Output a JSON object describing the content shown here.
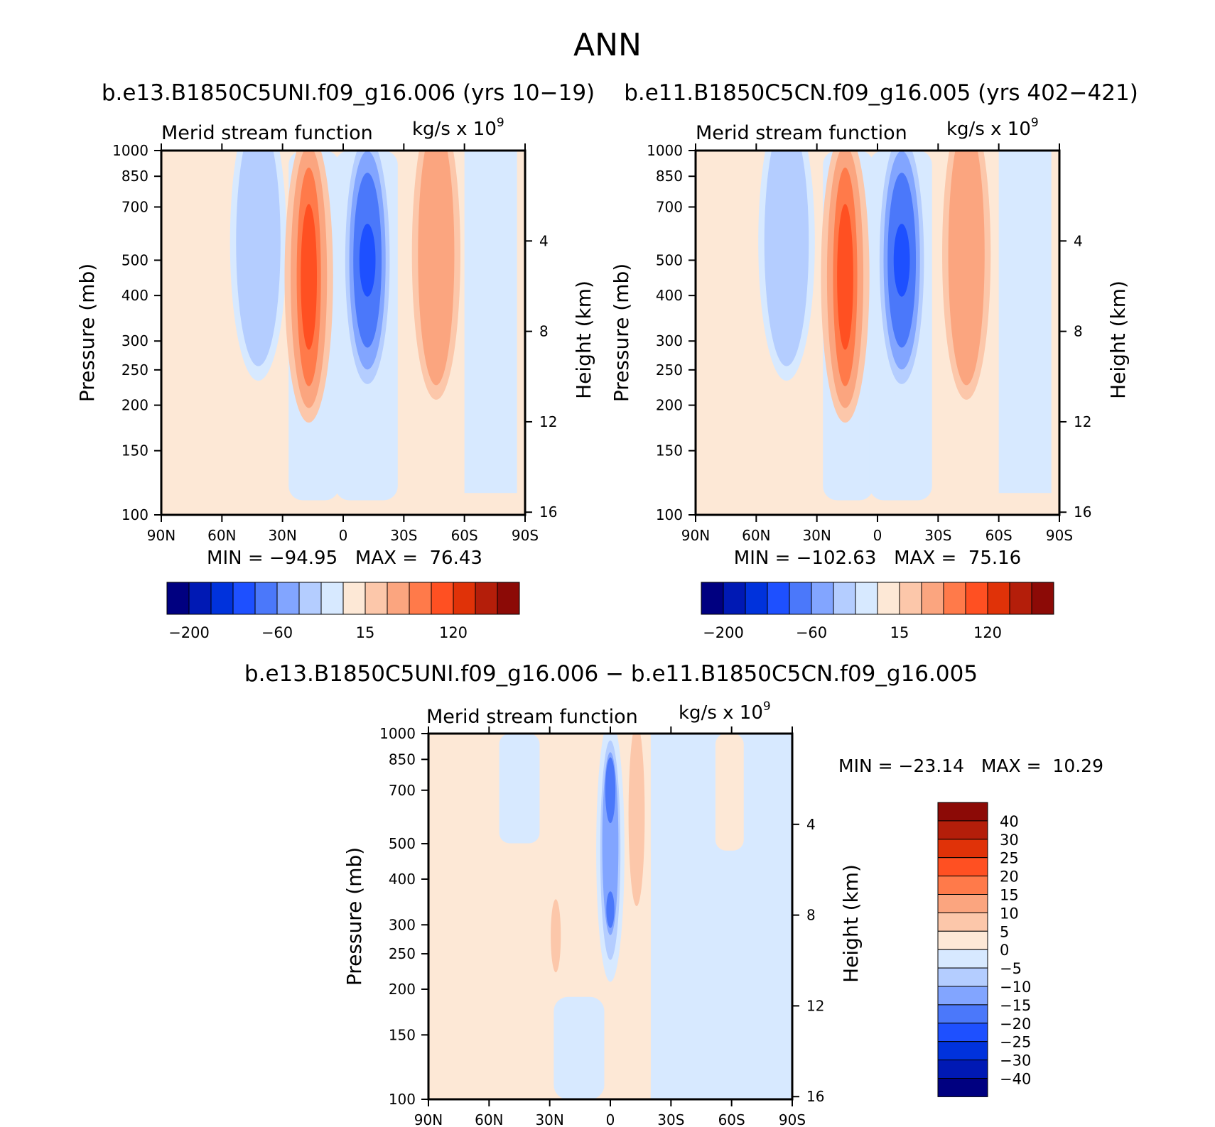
{
  "page_title": "ANN",
  "colors": {
    "blue_scale": [
      "#000080",
      "#0019b4",
      "#0032dc",
      "#1e50ff",
      "#4b78fa",
      "#82a5ff",
      "#b4cdff",
      "#d7e9ff"
    ],
    "red_scale": [
      "#fde8d6",
      "#fcc7aa",
      "#fba57f",
      "#ff7a4a",
      "#ff5022",
      "#e03208",
      "#b41e0a",
      "#8c0a06"
    ]
  },
  "chart_data": [
    {
      "id": "panel1",
      "type": "heatmap",
      "title": "b.e13.B1850C5UNI.f09_g16.006 (yrs 10−19)",
      "subtitle": "Merid stream function",
      "units": "kg/s x 10",
      "units_exp": "9",
      "ylabel": "Pressure (mb)",
      "ylabel2": "Height (km)",
      "x_ticks": [
        "90N",
        "60N",
        "30N",
        "0",
        "30S",
        "60S",
        "90S"
      ],
      "y_ticks": [
        100,
        150,
        200,
        250,
        300,
        400,
        500,
        700,
        850,
        1000
      ],
      "height_ticks": [
        16,
        12,
        8,
        4
      ],
      "stats": "MIN = −94.95   MAX =  76.43",
      "colorbar_labels": [
        "−200",
        "−60",
        "15",
        "120"
      ],
      "features": [
        {
          "center_lat": -42,
          "center_p": 560,
          "value": -15
        },
        {
          "center_lat": -17,
          "center_p": 450,
          "value": 60
        },
        {
          "center_lat": 12,
          "center_p": 500,
          "value": -90
        },
        {
          "center_lat": 46,
          "center_p": 520,
          "value": 35
        }
      ]
    },
    {
      "id": "panel2",
      "type": "heatmap",
      "title": "b.e11.B1850C5CN.f09_g16.005 (yrs 402−421)",
      "subtitle": "Merid stream function",
      "units": "kg/s x 10",
      "units_exp": "9",
      "ylabel": "Pressure (mb)",
      "ylabel2": "Height (km)",
      "x_ticks": [
        "90N",
        "60N",
        "30N",
        "0",
        "30S",
        "60S",
        "90S"
      ],
      "y_ticks": [
        100,
        150,
        200,
        250,
        300,
        400,
        500,
        700,
        850,
        1000
      ],
      "height_ticks": [
        16,
        12,
        8,
        4
      ],
      "stats": "MIN = −102.63   MAX =  75.16",
      "colorbar_labels": [
        "−200",
        "−60",
        "15",
        "120"
      ],
      "features": [
        {
          "center_lat": -45,
          "center_p": 560,
          "value": -15
        },
        {
          "center_lat": -16,
          "center_p": 450,
          "value": 65
        },
        {
          "center_lat": 12,
          "center_p": 500,
          "value": -100
        },
        {
          "center_lat": 44,
          "center_p": 520,
          "value": 35
        }
      ]
    },
    {
      "id": "diff",
      "type": "heatmap",
      "title": "b.e13.B1850C5UNI.f09_g16.006 − b.e11.B1850C5CN.f09_g16.005",
      "subtitle": "Merid stream function",
      "units": "kg/s x 10",
      "units_exp": "9",
      "ylabel": "Pressure (mb)",
      "ylabel2": "Height (km)",
      "x_ticks": [
        "90N",
        "60N",
        "30N",
        "0",
        "30S",
        "60S",
        "90S"
      ],
      "y_ticks": [
        100,
        150,
        200,
        250,
        300,
        400,
        500,
        700,
        850,
        1000
      ],
      "height_ticks": [
        16,
        12,
        8,
        4
      ],
      "stats": "MIN = −23.14   MAX =  10.29",
      "colorbar_labels": [
        "40",
        "30",
        "25",
        "20",
        "15",
        "10",
        "5",
        "0",
        "−5",
        "−10",
        "−15",
        "−20",
        "−25",
        "−30",
        "−40"
      ],
      "features": [
        {
          "center_lat": 0,
          "center_p": 500,
          "value": -20
        },
        {
          "center_lat": 13,
          "center_p": 600,
          "value": 8
        },
        {
          "center_lat": -27,
          "center_p": 280,
          "value": 6
        }
      ]
    }
  ]
}
